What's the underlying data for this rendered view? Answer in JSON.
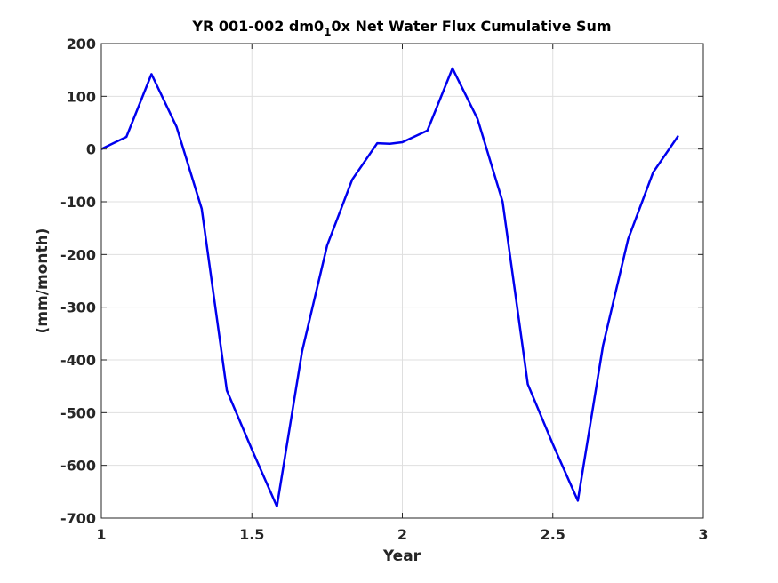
{
  "chart_data": {
    "type": "line",
    "title_main": "YR 001-002 dm0",
    "title_subscript": "1",
    "title_rest": "0x Net Water Flux Cumulative Sum",
    "xlabel": "Year",
    "ylabel": "(mm/month)",
    "xlim": [
      1,
      3
    ],
    "ylim": [
      -700,
      200
    ],
    "xticks": [
      1,
      1.5,
      2,
      2.5,
      3
    ],
    "xtick_labels": [
      "1",
      "1.5",
      "2",
      "2.5",
      "3"
    ],
    "yticks": [
      200,
      100,
      0,
      -100,
      -200,
      -300,
      -400,
      -500,
      -600,
      -700
    ],
    "ytick_labels": [
      "200",
      "100",
      "0",
      "-100",
      "-200",
      "-300",
      "-400",
      "-500",
      "-600",
      "-700"
    ],
    "grid": true,
    "line_color": "#0000ee",
    "series": [
      {
        "x": [
          1.0,
          1.0833,
          1.1667,
          1.25,
          1.3333,
          1.4167,
          1.5,
          1.5833,
          1.6667,
          1.75,
          1.8333,
          1.9167,
          1.9583,
          2.0,
          2.0833,
          2.1667,
          2.25,
          2.3333,
          2.4167,
          2.5,
          2.5833,
          2.6667,
          2.75,
          2.8333,
          2.9167
        ],
        "y": [
          0,
          23,
          142,
          42,
          -113,
          -458,
          -570,
          -678,
          -384,
          -183,
          -58,
          11,
          10,
          13,
          35,
          153,
          57,
          -100,
          -446,
          -560,
          -667,
          -373,
          -171,
          -44,
          25
        ]
      }
    ]
  }
}
